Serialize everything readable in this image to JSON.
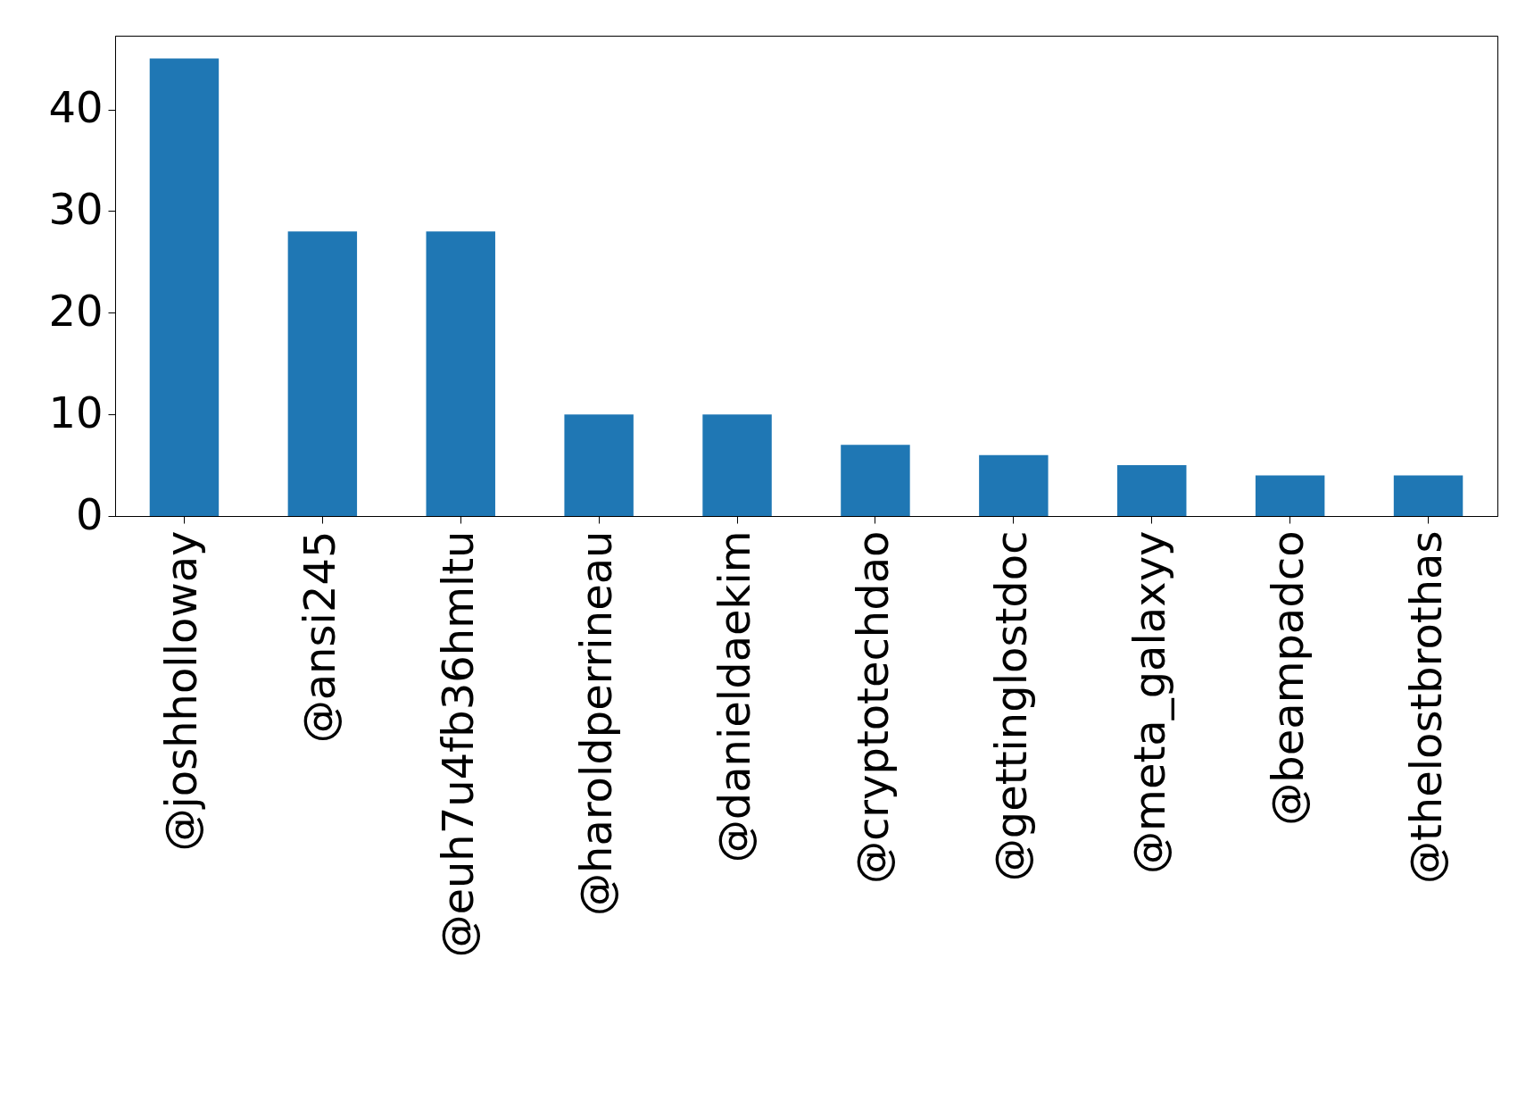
{
  "chart_data": {
    "type": "bar",
    "categories": [
      "@joshholloway",
      "@ansi245",
      "@euh7u4fb36hmltu",
      "@haroldperrineau",
      "@danieldaekim",
      "@cryptotechdao",
      "@gettinglostdoc",
      "@meta_galaxyy",
      "@beampadco",
      "@thelostbrothas"
    ],
    "values": [
      45,
      28,
      28,
      10,
      10,
      7,
      6,
      5,
      4,
      4
    ],
    "color": "#1f77b4",
    "ylim": [
      0,
      47.25
    ],
    "yticks": [
      0,
      10,
      20,
      30,
      40
    ],
    "grid": false,
    "legend": false
  }
}
